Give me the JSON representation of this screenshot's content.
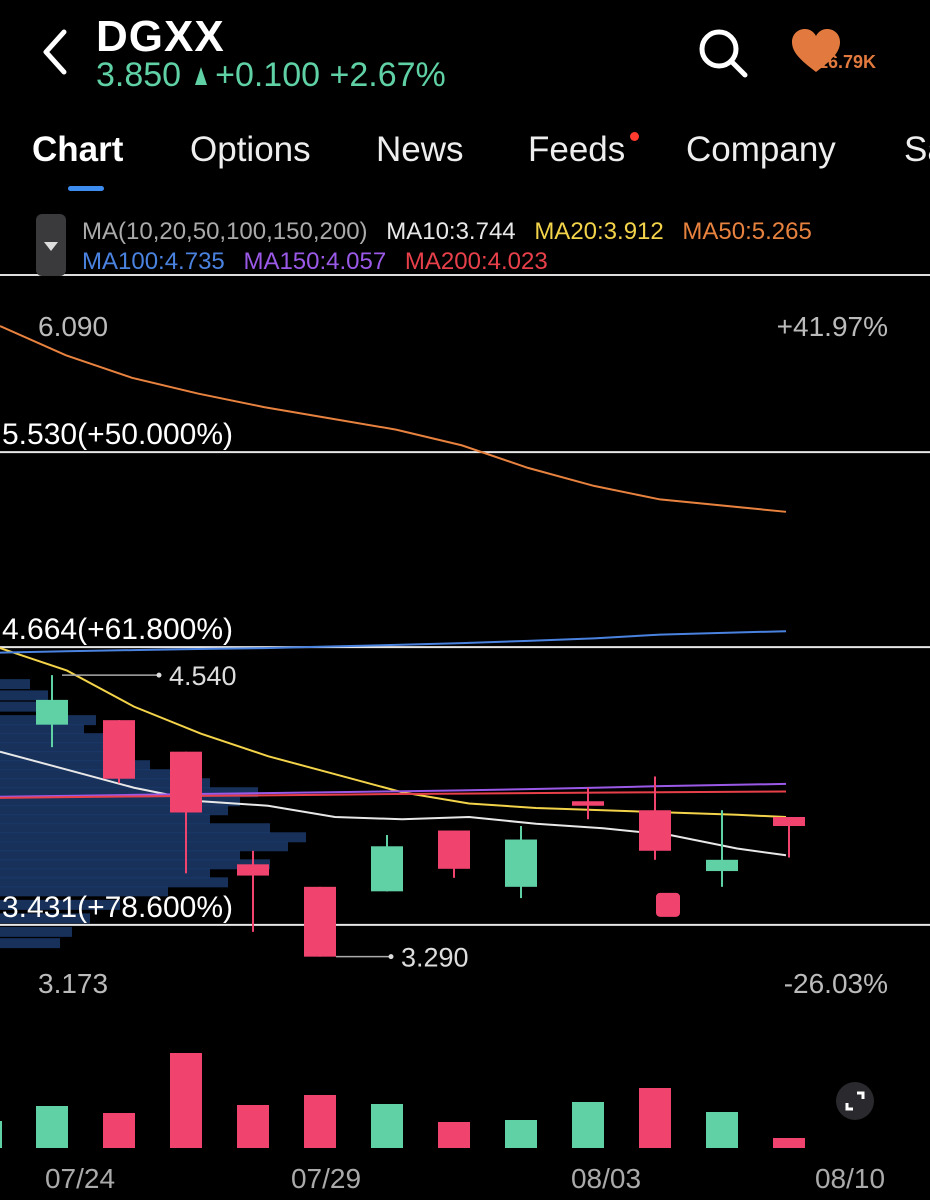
{
  "header": {
    "ticker": "DGXX",
    "price": "3.850",
    "change": "+0.100",
    "change_pct": "+2.67%",
    "favorites_count": "16.79K",
    "colors": {
      "up": "#5fd1a5",
      "down": "#f0436e",
      "accent": "#3d8cf0",
      "fav": "#e27a3f"
    },
    "icons": [
      "back-chevron-icon",
      "search-icon",
      "heart-favorite-icon"
    ]
  },
  "tabs": [
    {
      "label": "Chart",
      "active": true
    },
    {
      "label": "Options",
      "active": false
    },
    {
      "label": "News",
      "active": false
    },
    {
      "label": "Feeds",
      "active": false,
      "badge": true
    },
    {
      "label": "Company",
      "active": false
    },
    {
      "label": "Sa",
      "active": false
    }
  ],
  "ma_legend": {
    "title": "MA(10,20,50,100,150,200)",
    "items": [
      {
        "label": "MA10:3.744",
        "color": "#e8e8e8"
      },
      {
        "label": "MA20:3.912",
        "color": "#f3d34a"
      },
      {
        "label": "MA50:5.265",
        "color": "#e8823f"
      },
      {
        "label": "MA100:4.735",
        "color": "#4a82e0"
      },
      {
        "label": "MA150:4.057",
        "color": "#9b59e8"
      },
      {
        "label": "MA200:4.023",
        "color": "#e8404a"
      }
    ]
  },
  "chart_data": {
    "type": "candlestick",
    "y_axis": {
      "min": 3.173,
      "max": 6.09,
      "top_label": "6.090",
      "bottom_label": "3.173",
      "top_pct": "+41.97%",
      "bottom_pct": "-26.03%"
    },
    "x_tick_labels": [
      "07/24",
      "07/29",
      "08/03",
      "08/10"
    ],
    "fib_levels": [
      {
        "value": 5.53,
        "label": "5.530(+50.000%)"
      },
      {
        "value": 4.664,
        "label": "4.664(+61.800%)"
      },
      {
        "value": 3.431,
        "label": "3.431(+78.600%)"
      }
    ],
    "high_marker": {
      "value": 4.54,
      "label": "4.540"
    },
    "low_marker": {
      "value": 3.29,
      "label": "3.290"
    },
    "candles": [
      {
        "open": 4.32,
        "close": 4.43,
        "high": 4.54,
        "low": 4.22
      },
      {
        "open": 4.34,
        "close": 4.08,
        "high": 4.34,
        "low": 4.06
      },
      {
        "open": 4.2,
        "close": 3.93,
        "high": 4.2,
        "low": 3.66
      },
      {
        "open": 3.7,
        "close": 3.65,
        "high": 3.76,
        "low": 3.4
      },
      {
        "open": 3.6,
        "close": 3.29,
        "high": 3.6,
        "low": 3.29
      },
      {
        "open": 3.58,
        "close": 3.78,
        "high": 3.83,
        "low": 3.58
      },
      {
        "open": 3.85,
        "close": 3.68,
        "high": 3.85,
        "low": 3.64
      },
      {
        "open": 3.6,
        "close": 3.81,
        "high": 3.87,
        "low": 3.55
      },
      {
        "open": 3.98,
        "close": 3.96,
        "high": 4.04,
        "low": 3.9
      },
      {
        "open": 3.94,
        "close": 3.76,
        "high": 4.09,
        "low": 3.72
      },
      {
        "open": 3.67,
        "close": 3.72,
        "high": 3.94,
        "low": 3.6
      },
      {
        "open": 3.91,
        "close": 3.87,
        "high": 3.91,
        "low": 3.73
      }
    ],
    "ghost_candle": {
      "value": 3.52
    },
    "moving_averages": [
      {
        "name": "MA10",
        "color": "#e8e8e8",
        "values": [
          4.2,
          4.12,
          4.04,
          3.98,
          3.96,
          3.91,
          3.9,
          3.91,
          3.88,
          3.86,
          3.83,
          3.77,
          3.74
        ]
      },
      {
        "name": "MA20",
        "color": "#f3d34a",
        "values": [
          4.66,
          4.56,
          4.4,
          4.28,
          4.18,
          4.1,
          4.02,
          3.97,
          3.95,
          3.94,
          3.93,
          3.92,
          3.91
        ]
      },
      {
        "name": "MA50",
        "color": "#e8823f",
        "values": [
          6.09,
          5.96,
          5.86,
          5.79,
          5.73,
          5.68,
          5.63,
          5.56,
          5.46,
          5.38,
          5.32,
          5.265
        ]
      },
      {
        "name": "MA100",
        "color": "#4a82e0",
        "values": [
          4.64,
          4.646,
          4.651,
          4.656,
          4.66,
          4.667,
          4.674,
          4.682,
          4.692,
          4.703,
          4.72,
          4.735
        ]
      },
      {
        "name": "MA150",
        "color": "#9b59e8",
        "values": [
          4.0,
          4.004,
          4.008,
          4.012,
          4.016,
          4.02,
          4.024,
          4.028,
          4.034,
          4.04,
          4.047,
          4.057
        ]
      },
      {
        "name": "MA200",
        "color": "#e8404a",
        "values": [
          3.995,
          3.998,
          4.001,
          4.004,
          4.006,
          4.009,
          4.012,
          4.014,
          4.016,
          4.018,
          4.02,
          4.023
        ]
      }
    ],
    "volume_profile": [
      {
        "price": 4.5,
        "size": 0.05
      },
      {
        "price": 4.45,
        "size": 0.08
      },
      {
        "price": 4.4,
        "size": 0.1
      },
      {
        "price": 4.34,
        "size": 0.16
      },
      {
        "price": 4.3,
        "size": 0.14
      },
      {
        "price": 4.26,
        "size": 0.18
      },
      {
        "price": 4.22,
        "size": 0.2
      },
      {
        "price": 4.18,
        "size": 0.22
      },
      {
        "price": 4.14,
        "size": 0.25
      },
      {
        "price": 4.1,
        "size": 0.3
      },
      {
        "price": 4.06,
        "size": 0.35
      },
      {
        "price": 4.02,
        "size": 0.43
      },
      {
        "price": 3.98,
        "size": 0.4
      },
      {
        "price": 3.94,
        "size": 0.38
      },
      {
        "price": 3.9,
        "size": 0.35
      },
      {
        "price": 3.86,
        "size": 0.45
      },
      {
        "price": 3.82,
        "size": 0.51
      },
      {
        "price": 3.78,
        "size": 0.48
      },
      {
        "price": 3.74,
        "size": 0.4
      },
      {
        "price": 3.7,
        "size": 0.45
      },
      {
        "price": 3.66,
        "size": 0.35
      },
      {
        "price": 3.62,
        "size": 0.38
      },
      {
        "price": 3.58,
        "size": 0.28
      },
      {
        "price": 3.52,
        "size": 0.2
      },
      {
        "price": 3.46,
        "size": 0.15
      },
      {
        "price": 3.4,
        "size": 0.12
      },
      {
        "price": 3.35,
        "size": 0.1
      }
    ],
    "volume": [
      {
        "value": 0.27,
        "up": true
      },
      {
        "value": 0.42,
        "up": true
      },
      {
        "value": 0.35,
        "up": false
      },
      {
        "value": 0.95,
        "up": false
      },
      {
        "value": 0.43,
        "up": false
      },
      {
        "value": 0.53,
        "up": false
      },
      {
        "value": 0.44,
        "up": true
      },
      {
        "value": 0.26,
        "up": false
      },
      {
        "value": 0.28,
        "up": true
      },
      {
        "value": 0.46,
        "up": true
      },
      {
        "value": 0.6,
        "up": false
      },
      {
        "value": 0.36,
        "up": true
      },
      {
        "value": 0.1,
        "up": false
      }
    ],
    "grid": false,
    "legend": "top"
  }
}
